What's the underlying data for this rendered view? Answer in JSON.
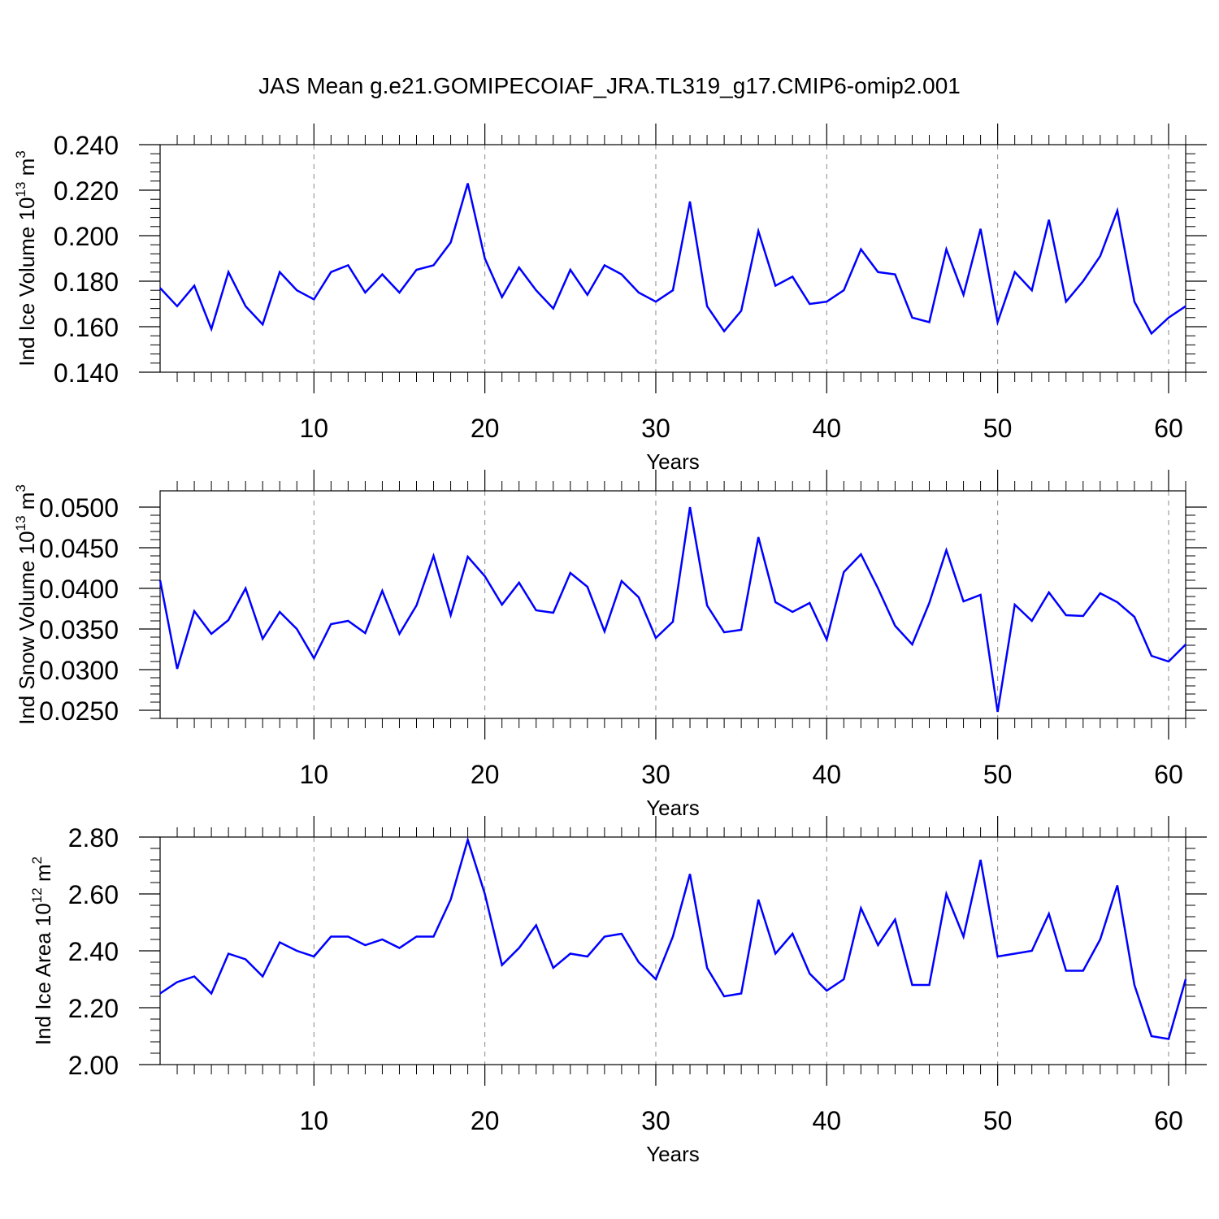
{
  "chart_data": {
    "title": "JAS Mean g.e21.GOMIPECOIAF_JRA.TL319_g17.CMIP6-omip2.001",
    "panels": [
      {
        "type": "line",
        "ylabel": {
          "text": "Ind Ice Volume 10",
          "exp": "13",
          "unit": " m",
          "unit_exp": "3"
        },
        "xlabel": "Years",
        "xlim": [
          1,
          61
        ],
        "ylim": [
          0.14,
          0.24
        ],
        "xticks": [
          10,
          20,
          30,
          40,
          50,
          60
        ],
        "xtick_labels": [
          "10",
          "20",
          "30",
          "40",
          "50",
          "60"
        ],
        "yticks": [
          0.14,
          0.16,
          0.18,
          0.2,
          0.22,
          0.24
        ],
        "ytick_labels": [
          "0.140",
          "0.160",
          "0.180",
          "0.200",
          "0.220",
          "0.240"
        ],
        "grid": "dashed vertical at major x ticks",
        "color": "#0000ff",
        "x": [
          1,
          2,
          3,
          4,
          5,
          6,
          7,
          8,
          9,
          10,
          11,
          12,
          13,
          14,
          15,
          16,
          17,
          18,
          19,
          20,
          21,
          22,
          23,
          24,
          25,
          26,
          27,
          28,
          29,
          30,
          31,
          32,
          33,
          34,
          35,
          36,
          37,
          38,
          39,
          40,
          41,
          42,
          43,
          44,
          45,
          46,
          47,
          48,
          49,
          50,
          51,
          52,
          53,
          54,
          55,
          56,
          57,
          58,
          59,
          60,
          61
        ],
        "values": [
          0.177,
          0.169,
          0.178,
          0.159,
          0.184,
          0.169,
          0.161,
          0.184,
          0.176,
          0.172,
          0.184,
          0.187,
          0.175,
          0.183,
          0.175,
          0.185,
          0.187,
          0.197,
          0.223,
          0.19,
          0.173,
          0.186,
          0.176,
          0.168,
          0.185,
          0.174,
          0.187,
          0.183,
          0.175,
          0.171,
          0.176,
          0.215,
          0.169,
          0.158,
          0.167,
          0.202,
          0.178,
          0.182,
          0.17,
          0.171,
          0.176,
          0.194,
          0.184,
          0.183,
          0.164,
          0.162,
          0.194,
          0.174,
          0.203,
          0.162,
          0.184,
          0.176,
          0.207,
          0.171,
          0.18,
          0.191,
          0.211,
          0.171,
          0.157,
          0.164,
          0.169
        ]
      },
      {
        "type": "line",
        "ylabel": {
          "text": "Ind Snow Volume 10",
          "exp": "13",
          "unit": " m",
          "unit_exp": "3"
        },
        "xlabel": "Years",
        "xlim": [
          1,
          61
        ],
        "ylim": [
          0.024,
          0.052
        ],
        "xticks": [
          10,
          20,
          30,
          40,
          50,
          60
        ],
        "xtick_labels": [
          "10",
          "20",
          "30",
          "40",
          "50",
          "60"
        ],
        "yticks": [
          0.025,
          0.03,
          0.035,
          0.04,
          0.045,
          0.05
        ],
        "ytick_labels": [
          "0.0250",
          "0.0300",
          "0.0350",
          "0.0400",
          "0.0450",
          "0.0500"
        ],
        "grid": "dashed vertical at major x ticks",
        "color": "#0000ff",
        "x": [
          1,
          2,
          3,
          4,
          5,
          6,
          7,
          8,
          9,
          10,
          11,
          12,
          13,
          14,
          15,
          16,
          17,
          18,
          19,
          20,
          21,
          22,
          23,
          24,
          25,
          26,
          27,
          28,
          29,
          30,
          31,
          32,
          33,
          34,
          35,
          36,
          37,
          38,
          39,
          40,
          41,
          42,
          43,
          44,
          45,
          46,
          47,
          48,
          49,
          50,
          51,
          52,
          53,
          54,
          55,
          56,
          57,
          58,
          59,
          60,
          61
        ],
        "values": [
          0.041,
          0.0301,
          0.0372,
          0.0344,
          0.0361,
          0.04,
          0.0338,
          0.0371,
          0.035,
          0.0314,
          0.0356,
          0.036,
          0.0345,
          0.0397,
          0.0344,
          0.0379,
          0.044,
          0.0367,
          0.0439,
          0.0415,
          0.038,
          0.0407,
          0.0373,
          0.037,
          0.0419,
          0.0402,
          0.0347,
          0.0409,
          0.0389,
          0.0339,
          0.0359,
          0.05,
          0.0379,
          0.0346,
          0.0349,
          0.0463,
          0.0383,
          0.0371,
          0.0382,
          0.0337,
          0.042,
          0.0442,
          0.04,
          0.0354,
          0.0331,
          0.0382,
          0.0447,
          0.0384,
          0.0392,
          0.0248,
          0.038,
          0.036,
          0.0395,
          0.0367,
          0.0366,
          0.0394,
          0.0383,
          0.0365,
          0.0317,
          0.031,
          0.0331
        ]
      },
      {
        "type": "line",
        "ylabel": {
          "text": "Ind Ice Area 10",
          "exp": "12",
          "unit": " m",
          "unit_exp": "2"
        },
        "xlabel": "Years",
        "xlim": [
          1,
          61
        ],
        "ylim": [
          2.0,
          2.8
        ],
        "xticks": [
          10,
          20,
          30,
          40,
          50,
          60
        ],
        "xtick_labels": [
          "10",
          "20",
          "30",
          "40",
          "50",
          "60"
        ],
        "yticks": [
          2.0,
          2.2,
          2.4,
          2.6,
          2.8
        ],
        "ytick_labels": [
          "2.00",
          "2.20",
          "2.40",
          "2.60",
          "2.80"
        ],
        "grid": "dashed vertical at major x ticks",
        "color": "#0000ff",
        "x": [
          1,
          2,
          3,
          4,
          5,
          6,
          7,
          8,
          9,
          10,
          11,
          12,
          13,
          14,
          15,
          16,
          17,
          18,
          19,
          20,
          21,
          22,
          23,
          24,
          25,
          26,
          27,
          28,
          29,
          30,
          31,
          32,
          33,
          34,
          35,
          36,
          37,
          38,
          39,
          40,
          41,
          42,
          43,
          44,
          45,
          46,
          47,
          48,
          49,
          50,
          51,
          52,
          53,
          54,
          55,
          56,
          57,
          58,
          59,
          60,
          61
        ],
        "values": [
          2.25,
          2.29,
          2.31,
          2.25,
          2.39,
          2.37,
          2.31,
          2.43,
          2.4,
          2.38,
          2.45,
          2.45,
          2.42,
          2.44,
          2.41,
          2.45,
          2.45,
          2.58,
          2.79,
          2.6,
          2.35,
          2.41,
          2.49,
          2.34,
          2.39,
          2.38,
          2.45,
          2.46,
          2.36,
          2.3,
          2.45,
          2.67,
          2.34,
          2.24,
          2.25,
          2.58,
          2.39,
          2.46,
          2.32,
          2.26,
          2.3,
          2.55,
          2.42,
          2.51,
          2.28,
          2.28,
          2.6,
          2.45,
          2.72,
          2.38,
          2.39,
          2.4,
          2.53,
          2.33,
          2.33,
          2.44,
          2.63,
          2.28,
          2.1,
          2.09,
          2.3
        ]
      }
    ]
  }
}
